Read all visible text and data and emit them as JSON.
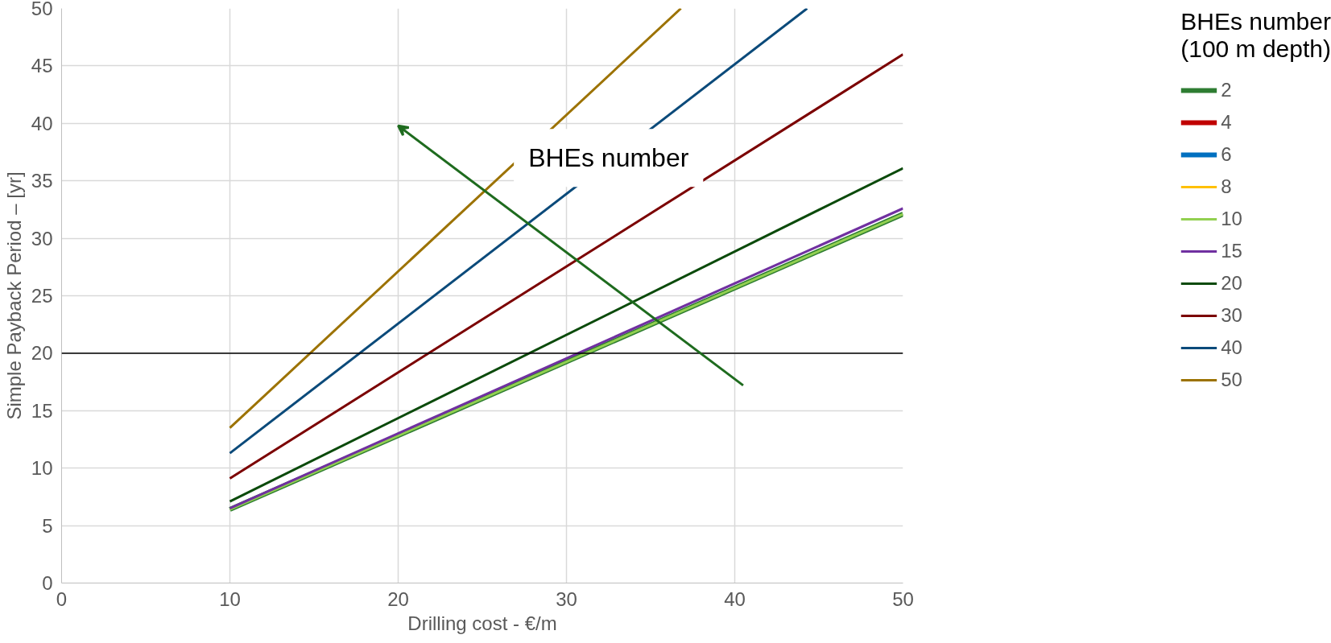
{
  "chart_data": {
    "type": "line",
    "xlabel": "Drilling cost - €/m",
    "ylabel": "Simple Payback Period – [yr]",
    "legend_title": "BHEs number\n(100 m depth)",
    "xlim": [
      0,
      50
    ],
    "ylim": [
      0,
      50
    ],
    "xticks": [
      0,
      10,
      20,
      30,
      40,
      50
    ],
    "yticks": [
      0,
      5,
      10,
      15,
      20,
      25,
      30,
      35,
      40,
      45,
      50
    ],
    "grid": true,
    "legend": "right",
    "marker": "none",
    "line_style": "solid",
    "series": [
      {
        "name": "2",
        "color": "#2e7d32",
        "x": [
          10,
          50
        ],
        "values": [
          6.4,
          32.1
        ]
      },
      {
        "name": "4",
        "color": "#c00000",
        "values": [
          null,
          null
        ]
      },
      {
        "name": "6",
        "color": "#0070c0",
        "values": [
          null,
          null
        ]
      },
      {
        "name": "8",
        "color": "#ffc000",
        "values": [
          null,
          null
        ]
      },
      {
        "name": "10",
        "color": "#92d050",
        "x": [
          10,
          50
        ],
        "values": [
          6.4,
          32.1
        ]
      },
      {
        "name": "15",
        "color": "#7030a0",
        "x": [
          10,
          50
        ],
        "values": [
          6.5,
          32.6
        ]
      },
      {
        "name": "20",
        "color": "#0b4a0b",
        "x": [
          10,
          50
        ],
        "values": [
          7.1,
          36.1
        ]
      },
      {
        "name": "30",
        "color": "#7b0000",
        "x": [
          10,
          50
        ],
        "values": [
          9.1,
          46
        ]
      },
      {
        "name": "40",
        "color": "#0b4a7a",
        "x": [
          10,
          44.3
        ],
        "values": [
          11.3,
          50
        ]
      },
      {
        "name": "50",
        "color": "#9c7200",
        "x": [
          10,
          36.8
        ],
        "values": [
          13.5,
          50
        ]
      }
    ],
    "ref_lines": [
      {
        "axis": "y",
        "value": 20,
        "color": "#000000"
      }
    ],
    "annotations": [
      {
        "text": "BHEs number",
        "x": 32.5,
        "y": 37
      }
    ]
  }
}
